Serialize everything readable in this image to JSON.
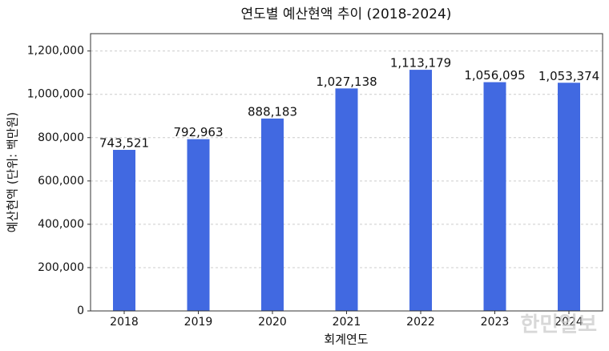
{
  "chart_data": {
    "type": "bar",
    "title": "연도별 예산현액 추이 (2018-2024)",
    "x_label": "회계연도",
    "y_label": "예산현액 (단위: 백만원)",
    "categories": [
      "2018",
      "2019",
      "2020",
      "2021",
      "2022",
      "2023",
      "2024"
    ],
    "values": [
      743521,
      792963,
      888183,
      1027138,
      1113179,
      1056095,
      1053374
    ],
    "value_labels": [
      "743,521",
      "792,963",
      "888,183",
      "1,027,138",
      "1,113,179",
      "1,056,095",
      "1,053,374"
    ],
    "color": "#4169e1",
    "ylim": [
      0,
      1280000
    ],
    "yticks": [
      0,
      {
        "value": 200000,
        "label": "200,000"
      },
      {
        "value": 400000,
        "label": "400,000"
      },
      {
        "value": 600000,
        "label": "600,000"
      },
      {
        "value": 800000,
        "label": "800,000"
      },
      {
        "value": 1000000,
        "label": "1,000,000"
      },
      {
        "value": 1200000,
        "label": "1,200,000"
      }
    ],
    "grid": true,
    "watermark": "한민일보"
  }
}
